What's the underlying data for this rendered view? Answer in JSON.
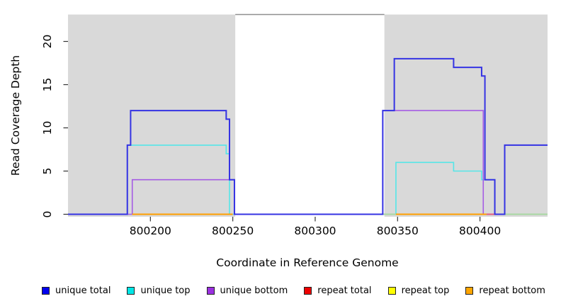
{
  "chart_data": {
    "type": "line",
    "step": true,
    "title": "",
    "xlabel": "Coordinate in Reference Genome",
    "ylabel": "Read Coverage Depth",
    "xlim": [
      800150,
      800441
    ],
    "ylim": [
      0,
      23.1
    ],
    "x_ticks": {
      "values": [
        800200,
        800250,
        800300,
        800350,
        800400
      ],
      "labels": [
        "800200",
        "800250",
        "800300",
        "800350",
        "800400"
      ]
    },
    "y_ticks": {
      "values": [
        0,
        5,
        10,
        15,
        20
      ],
      "labels": [
        "0",
        "5",
        "10",
        "15",
        "20"
      ]
    },
    "grid": false,
    "panel": {
      "bg_color": "#d9d9d9",
      "white_gap_x": [
        800251.5,
        800342
      ],
      "gap_top_line_color": "#8f8f8f"
    },
    "series": [
      {
        "name": "unique top",
        "color": "#55e6e8",
        "width": 1.6,
        "steps": [
          [
            800150,
            0
          ],
          [
            800186,
            8
          ],
          [
            800246,
            7
          ],
          [
            800248,
            0
          ],
          [
            800349,
            6
          ],
          [
            800384,
            5
          ],
          [
            800401,
            4
          ],
          [
            800409,
            0
          ],
          [
            800441,
            0
          ]
        ]
      },
      {
        "name": "unique bottom",
        "color": "#a55ce4",
        "width": 1.6,
        "steps": [
          [
            800150,
            0
          ],
          [
            800189,
            4
          ],
          [
            800251,
            0
          ],
          [
            800341,
            12
          ],
          [
            800402,
            0
          ],
          [
            800441,
            0
          ]
        ]
      },
      {
        "name": "baseline green",
        "color": "#a8d8a2",
        "width": 2,
        "zero_segments": [
          [
            800341,
            800349
          ],
          [
            800415,
            800441
          ]
        ]
      },
      {
        "name": "repeat bottom",
        "color": "#ff9e00",
        "width": 2,
        "zero_segments": [
          [
            800189,
            800250
          ],
          [
            800349,
            800404
          ]
        ]
      },
      {
        "name": "repeat total",
        "color": "#e25c7e",
        "width": 2,
        "zero_segments": [
          [
            800404,
            800409
          ]
        ]
      },
      {
        "name": "unique total",
        "color": "#3533e3",
        "width": 2,
        "steps": [
          [
            800150,
            0
          ],
          [
            800186,
            8
          ],
          [
            800188,
            12
          ],
          [
            800246,
            11
          ],
          [
            800248,
            4
          ],
          [
            800251,
            0
          ],
          [
            800341,
            12
          ],
          [
            800348,
            18
          ],
          [
            800384,
            17
          ],
          [
            800401,
            16
          ],
          [
            800403,
            4
          ],
          [
            800409,
            0
          ],
          [
            800415,
            8
          ],
          [
            800441,
            8
          ]
        ]
      }
    ]
  },
  "legend": {
    "items": [
      {
        "label": "unique total",
        "color": "#0000ee"
      },
      {
        "label": "unique top",
        "color": "#00e6e6"
      },
      {
        "label": "unique bottom",
        "color": "#9b30e0"
      },
      {
        "label": "repeat total",
        "color": "#ee0000"
      },
      {
        "label": "repeat top",
        "color": "#ffff00"
      },
      {
        "label": "repeat bottom",
        "color": "#ffa500"
      }
    ]
  }
}
